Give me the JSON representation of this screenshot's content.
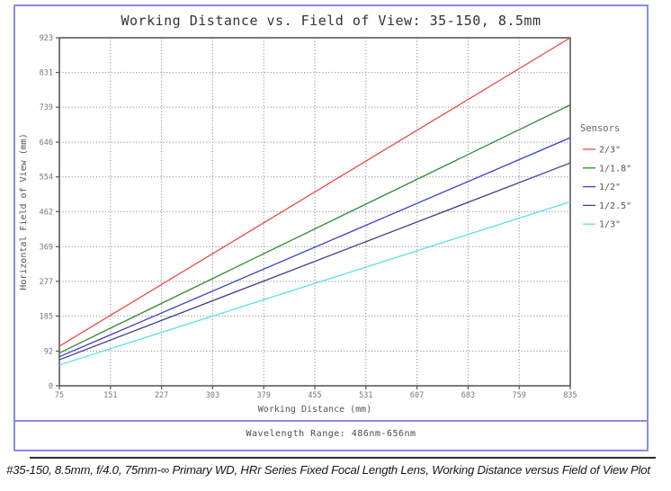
{
  "chart_data": {
    "type": "line",
    "title": "Working Distance vs. Field of View: 35-150, 8.5mm",
    "xlabel": "Working Distance (mm)",
    "ylabel": "Horizontal Field of View (mm)",
    "xlim": [
      75,
      835
    ],
    "ylim": [
      0,
      923
    ],
    "xticks": [
      75,
      151,
      227,
      303,
      379,
      455,
      531,
      607,
      683,
      759,
      835
    ],
    "yticks": [
      0,
      92,
      185,
      277,
      369,
      462,
      554,
      646,
      739,
      831,
      923
    ],
    "grid": "dotted",
    "legend_title": "Sensors",
    "legend_position": "right",
    "series": [
      {
        "name": "2/3\"",
        "color": "#e74a41",
        "points": [
          [
            75,
            105
          ],
          [
            835,
            923
          ]
        ]
      },
      {
        "name": "1/1.8\"",
        "color": "#2f8b2f",
        "points": [
          [
            75,
            87
          ],
          [
            835,
            745
          ]
        ]
      },
      {
        "name": "1/2\"",
        "color": "#3a3ad0",
        "points": [
          [
            75,
            77
          ],
          [
            835,
            658
          ]
        ]
      },
      {
        "name": "1/2.5\"",
        "color": "#40408c",
        "points": [
          [
            75,
            69
          ],
          [
            835,
            591
          ]
        ]
      },
      {
        "name": "1/3\"",
        "color": "#58e1e8",
        "points": [
          [
            75,
            55
          ],
          [
            835,
            488
          ]
        ]
      }
    ],
    "colors": {
      "figure_border": "#8a8ae4",
      "frame": "#5a5a5a",
      "grid": "#8e8e8e"
    }
  },
  "wavelength_note": "Wavelength Range: 486nm-656nm",
  "caption": "#35-150, 8.5mm, f/4.0, 75mm-∞ Primary WD, HRr Series Fixed Focal Length Lens, Working Distance versus Field of View Plot"
}
